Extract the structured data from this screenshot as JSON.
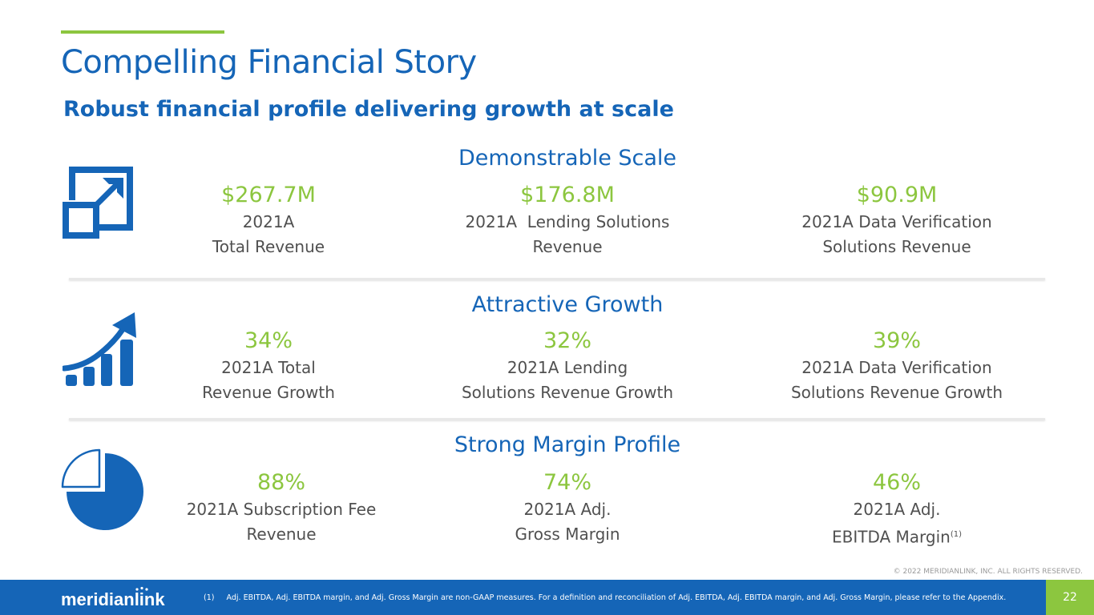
{
  "header": {
    "title": "Compelling Financial Story",
    "subtitle": "Robust financial profile delivering growth at scale"
  },
  "sections": [
    {
      "heading": "Demonstrable Scale",
      "icon": "scale-expand-icon",
      "metrics": [
        {
          "value": "$267.7M",
          "label_lines": [
            "2021A",
            "Total Revenue"
          ]
        },
        {
          "value": "$176.8M",
          "label_lines": [
            "2021A  Lending Solutions",
            "Revenue"
          ]
        },
        {
          "value": "$90.9M",
          "label_lines": [
            "2021A Data Verification",
            "Solutions Revenue"
          ]
        }
      ]
    },
    {
      "heading": "Attractive Growth",
      "icon": "growth-chart-icon",
      "metrics": [
        {
          "value": "34%",
          "label_lines": [
            "2021A Total",
            "Revenue Growth"
          ]
        },
        {
          "value": "32%",
          "label_lines": [
            "2021A Lending",
            "Solutions Revenue Growth"
          ]
        },
        {
          "value": "39%",
          "label_lines": [
            "2021A Data Verification",
            "Solutions Revenue Growth"
          ]
        }
      ]
    },
    {
      "heading": "Strong Margin Profile",
      "icon": "pie-chart-icon",
      "metrics": [
        {
          "value": "88%",
          "label_lines": [
            "2021A Subscription Fee",
            "Revenue"
          ]
        },
        {
          "value": "74%",
          "label_lines": [
            "2021A Adj.",
            "Gross Margin"
          ]
        },
        {
          "value": "46%",
          "label_lines": [
            "2021A Adj.",
            "EBITDA Margin"
          ],
          "footnote_ref": "(1)"
        }
      ]
    }
  ],
  "footer": {
    "brand": "meridianlink",
    "footnote": "(1)     Adj. EBITDA, Adj. EBITDA margin, and Adj. Gross Margin are non-GAAP measures. For a definition and reconciliation of Adj. EBITDA, Adj. EBITDA margin, and Adj. Gross Margin, please refer to the Appendix.",
    "page_number": "22",
    "copyright": "© 2022 MERIDIANLINK, INC. ALL RIGHTS RESERVED."
  },
  "colors": {
    "primary_blue": "#1565b7",
    "accent_green": "#8cc63f",
    "text_gray": "#505050"
  }
}
